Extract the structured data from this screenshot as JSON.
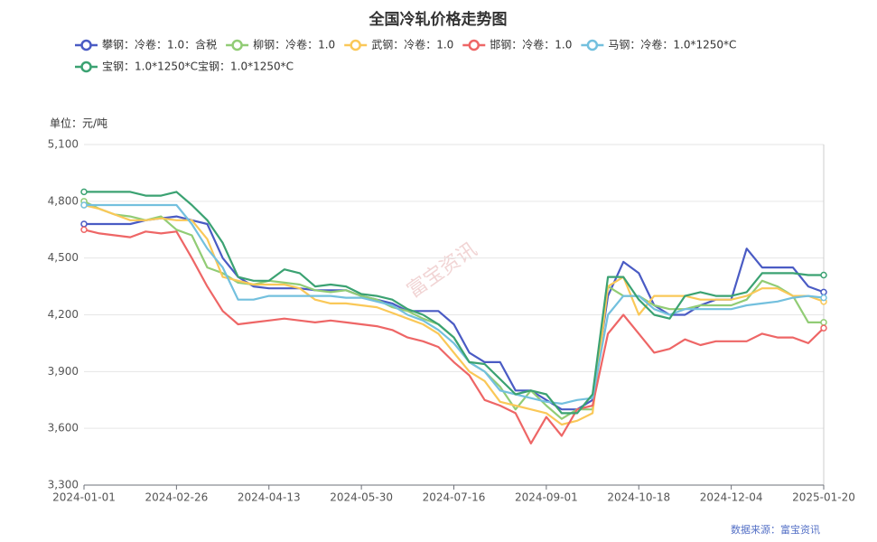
{
  "chart_data": {
    "type": "line",
    "title": "全国冷轧价格走势图",
    "unit_label": "单位：元/吨",
    "source": "数据来源：富宝资讯",
    "watermark": "富宝资讯",
    "x": [
      "2024-01-01",
      "2024-01-10",
      "2024-01-20",
      "2024-01-29",
      "2024-02-07",
      "2024-02-17",
      "2024-02-26",
      "2024-03-04",
      "2024-03-12",
      "2024-03-20",
      "2024-03-28",
      "2024-04-05",
      "2024-04-13",
      "2024-04-21",
      "2024-04-29",
      "2024-05-06",
      "2024-05-14",
      "2024-05-22",
      "2024-05-30",
      "2024-06-07",
      "2024-06-15",
      "2024-06-22",
      "2024-06-30",
      "2024-07-08",
      "2024-07-16",
      "2024-07-24",
      "2024-08-01",
      "2024-08-08",
      "2024-08-16",
      "2024-08-24",
      "2024-09-01",
      "2024-09-09",
      "2024-09-17",
      "2024-09-24",
      "2024-10-02",
      "2024-10-10",
      "2024-10-18",
      "2024-10-26",
      "2024-11-03",
      "2024-11-10",
      "2024-11-18",
      "2024-11-26",
      "2024-12-04",
      "2024-12-12",
      "2024-12-20",
      "2024-12-27",
      "2025-01-04",
      "2025-01-12",
      "2025-01-20"
    ],
    "xticks": [
      "2024-01-01",
      "2024-02-26",
      "2024-04-13",
      "2024-05-30",
      "2024-07-16",
      "2024-09-01",
      "2024-10-18",
      "2024-12-04",
      "2025-01-20"
    ],
    "ylim": [
      3300,
      5100
    ],
    "yticks": [
      {
        "value": 3300,
        "label": "3,300"
      },
      {
        "value": 3600,
        "label": "3,600"
      },
      {
        "value": 3900,
        "label": "3,900"
      },
      {
        "value": 4200,
        "label": "4,200"
      },
      {
        "value": 4500,
        "label": "4,500"
      },
      {
        "value": 4800,
        "label": "4,800"
      },
      {
        "value": 5100,
        "label": "5,100"
      }
    ],
    "grid": true,
    "series": [
      {
        "name": "攀钢：冷卷：1.0：含税",
        "color": "#4a5bc4",
        "values": [
          4680,
          4680,
          4680,
          4680,
          4700,
          4710,
          4720,
          4700,
          4680,
          4500,
          4400,
          4350,
          4340,
          4340,
          4340,
          4330,
          4330,
          4330,
          4300,
          4280,
          4260,
          4220,
          4220,
          4220,
          4150,
          4000,
          3950,
          3950,
          3800,
          3800,
          3750,
          3700,
          3700,
          3750,
          4300,
          4480,
          4420,
          4250,
          4200,
          4200,
          4250,
          4280,
          4280,
          4550,
          4450,
          4450,
          4450,
          4350,
          4320
        ]
      },
      {
        "name": "柳钢：冷卷：1.0",
        "color": "#91cc75",
        "values": [
          4800,
          4760,
          4730,
          4720,
          4700,
          4720,
          4650,
          4620,
          4450,
          4420,
          4370,
          4360,
          4380,
          4370,
          4360,
          4330,
          4320,
          4330,
          4300,
          4280,
          4240,
          4220,
          4180,
          4150,
          4080,
          3950,
          3900,
          3820,
          3700,
          3800,
          3720,
          3650,
          3700,
          3700,
          4350,
          4300,
          4300,
          4250,
          4230,
          4230,
          4250,
          4250,
          4250,
          4280,
          4380,
          4350,
          4300,
          4160,
          4160
        ]
      },
      {
        "name": "武钢：冷卷：1.0",
        "color": "#fac858",
        "values": [
          4780,
          4760,
          4730,
          4700,
          4700,
          4710,
          4700,
          4700,
          4600,
          4400,
          4380,
          4360,
          4360,
          4360,
          4340,
          4280,
          4260,
          4260,
          4250,
          4240,
          4210,
          4180,
          4150,
          4100,
          4000,
          3900,
          3850,
          3740,
          3720,
          3700,
          3680,
          3620,
          3640,
          3680,
          4350,
          4400,
          4200,
          4300,
          4300,
          4300,
          4280,
          4280,
          4280,
          4300,
          4340,
          4340,
          4300,
          4300,
          4270
        ]
      },
      {
        "name": "邯钢：冷卷：1.0",
        "color": "#ee6666",
        "values": [
          4650,
          4630,
          4620,
          4610,
          4640,
          4630,
          4640,
          4500,
          4350,
          4220,
          4150,
          4160,
          4170,
          4180,
          4170,
          4160,
          4170,
          4160,
          4150,
          4140,
          4120,
          4080,
          4060,
          4030,
          3950,
          3880,
          3750,
          3720,
          3680,
          3520,
          3660,
          3560,
          3700,
          3720,
          4100,
          4200,
          4100,
          4000,
          4020,
          4070,
          4040,
          4060,
          4060,
          4060,
          4100,
          4080,
          4080,
          4050,
          4130
        ]
      },
      {
        "name": "马钢：冷卷：1.0*1250*C",
        "color": "#73c0de",
        "values": [
          4780,
          4780,
          4780,
          4780,
          4780,
          4780,
          4780,
          4680,
          4550,
          4450,
          4280,
          4280,
          4300,
          4300,
          4300,
          4300,
          4300,
          4290,
          4290,
          4270,
          4250,
          4200,
          4170,
          4120,
          4050,
          3950,
          3900,
          3800,
          3780,
          3760,
          3740,
          3730,
          3750,
          3760,
          4200,
          4300,
          4300,
          4230,
          4200,
          4230,
          4230,
          4230,
          4230,
          4250,
          4260,
          4270,
          4290,
          4300,
          4290
        ]
      },
      {
        "name": "宝钢：1.0*1250*C宝钢：1.0*1250*C",
        "color": "#3ba272",
        "values": [
          4850,
          4850,
          4850,
          4850,
          4830,
          4830,
          4850,
          4780,
          4700,
          4580,
          4400,
          4380,
          4380,
          4440,
          4420,
          4350,
          4360,
          4350,
          4310,
          4300,
          4280,
          4230,
          4200,
          4150,
          4080,
          3950,
          3940,
          3860,
          3780,
          3800,
          3780,
          3680,
          3680,
          3780,
          4400,
          4400,
          4280,
          4200,
          4180,
          4300,
          4320,
          4300,
          4300,
          4320,
          4420,
          4420,
          4420,
          4410,
          4410
        ]
      }
    ]
  }
}
